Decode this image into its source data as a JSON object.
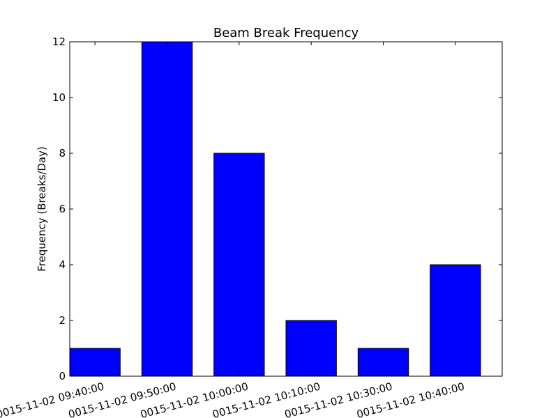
{
  "chart_data": {
    "type": "bar",
    "title": "Beam Break Frequency",
    "xlabel": "",
    "ylabel": "Frequency (Breaks/Day)",
    "categories": [
      "0015-11-02 09:40:00",
      "0015-11-02 09:50:00",
      "0015-11-02 10:00:00",
      "0015-11-02 10:10:00",
      "0015-11-02 10:30:00",
      "0015-11-02 10:40:00"
    ],
    "values": [
      1,
      12,
      8,
      2,
      1,
      4
    ],
    "ylim": [
      0,
      12
    ],
    "yticks": [
      "0",
      "2",
      "4",
      "6",
      "8",
      "10",
      "12"
    ],
    "grid": false,
    "bar_color": "#0000ff",
    "edge_color": "#000000"
  }
}
